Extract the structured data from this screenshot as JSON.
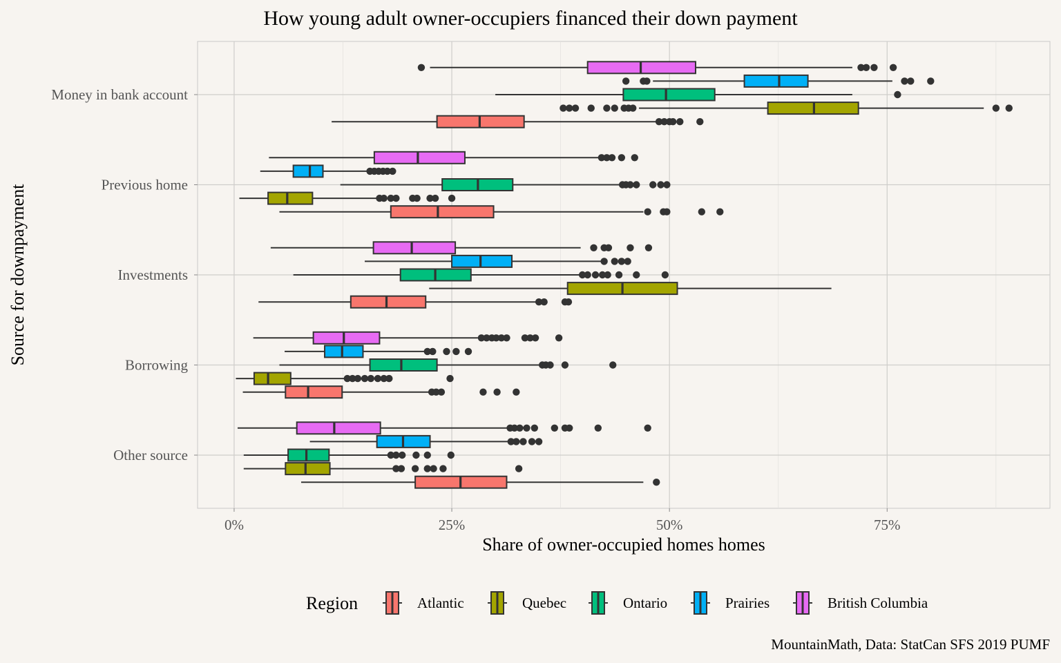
{
  "chart_data": {
    "type": "boxplot",
    "orientation": "horizontal",
    "title": "How young adult owner-occupiers financed their down payment",
    "xlabel": "Share of owner-occupied homes homes",
    "ylabel": "Source for downpayment",
    "caption": "MountainMath, Data: StatCan SFS 2019 PUMF",
    "xlim": [
      -0.042,
      0.937
    ],
    "xticks": [
      {
        "value": 0,
        "label": "0%"
      },
      {
        "value": 0.25,
        "label": "25%"
      },
      {
        "value": 0.5,
        "label": "50%"
      },
      {
        "value": 0.75,
        "label": "75%"
      }
    ],
    "grid": true,
    "legend": {
      "title": "Region",
      "position": "bottom",
      "entries": [
        "Atlantic",
        "Quebec",
        "Ontario",
        "Prairies",
        "British Columbia"
      ]
    },
    "colors": {
      "Atlantic": "#F8766D",
      "Quebec": "#A3A500",
      "Ontario": "#00BF7D",
      "Prairies": "#00B0F6",
      "British Columbia": "#E76BF3"
    },
    "categories": [
      "Money in bank account",
      "Previous home",
      "Investments",
      "Borrowing",
      "Other source"
    ],
    "groups": [
      {
        "category": "Money in bank account",
        "boxes": [
          {
            "region": "British Columbia",
            "whisker_low": 0.225,
            "q1": 0.406,
            "median": 0.467,
            "q3": 0.53,
            "whisker_high": 0.71,
            "outliers": [
              0.215,
              0.72,
              0.726,
              0.735,
              0.757
            ]
          },
          {
            "region": "Prairies",
            "whisker_low": 0.481,
            "q1": 0.586,
            "median": 0.626,
            "q3": 0.659,
            "whisker_high": 0.756,
            "outliers": [
              0.45,
              0.47,
              0.474,
              0.77,
              0.777,
              0.8
            ]
          },
          {
            "region": "Ontario",
            "whisker_low": 0.3,
            "q1": 0.447,
            "median": 0.496,
            "q3": 0.552,
            "whisker_high": 0.71,
            "outliers": [
              0.762
            ]
          },
          {
            "region": "Quebec",
            "whisker_low": 0.465,
            "q1": 0.613,
            "median": 0.666,
            "q3": 0.717,
            "whisker_high": 0.861,
            "outliers": [
              0.378,
              0.385,
              0.392,
              0.41,
              0.428,
              0.437,
              0.448,
              0.453,
              0.458,
              0.875,
              0.89
            ]
          },
          {
            "region": "Atlantic",
            "whisker_low": 0.112,
            "q1": 0.233,
            "median": 0.282,
            "q3": 0.333,
            "whisker_high": 0.486,
            "outliers": [
              0.488,
              0.494,
              0.5,
              0.504,
              0.512,
              0.535
            ]
          }
        ]
      },
      {
        "category": "Previous home",
        "boxes": [
          {
            "region": "British Columbia",
            "whisker_low": 0.04,
            "q1": 0.161,
            "median": 0.211,
            "q3": 0.265,
            "whisker_high": 0.42,
            "outliers": [
              0.422,
              0.428,
              0.434,
              0.445,
              0.46
            ]
          },
          {
            "region": "Prairies",
            "whisker_low": 0.03,
            "q1": 0.068,
            "median": 0.087,
            "q3": 0.102,
            "whisker_high": 0.155,
            "outliers": [
              0.156,
              0.161,
              0.166,
              0.171,
              0.176,
              0.182
            ]
          },
          {
            "region": "Ontario",
            "whisker_low": 0.122,
            "q1": 0.239,
            "median": 0.28,
            "q3": 0.32,
            "whisker_high": 0.445,
            "outliers": [
              0.446,
              0.45,
              0.455,
              0.462,
              0.481,
              0.49,
              0.497
            ]
          },
          {
            "region": "Quebec",
            "whisker_low": 0.006,
            "q1": 0.039,
            "median": 0.061,
            "q3": 0.09,
            "whisker_high": 0.165,
            "outliers": [
              0.167,
              0.172,
              0.18,
              0.186,
              0.205,
              0.21,
              0.225,
              0.231,
              0.25
            ]
          },
          {
            "region": "Atlantic",
            "whisker_low": 0.052,
            "q1": 0.18,
            "median": 0.234,
            "q3": 0.298,
            "whisker_high": 0.47,
            "outliers": [
              0.475,
              0.493,
              0.497,
              0.537,
              0.558
            ]
          }
        ]
      },
      {
        "category": "Investments",
        "boxes": [
          {
            "region": "British Columbia",
            "whisker_low": 0.042,
            "q1": 0.16,
            "median": 0.204,
            "q3": 0.254,
            "whisker_high": 0.398,
            "outliers": [
              0.413,
              0.425,
              0.43,
              0.455,
              0.476
            ]
          },
          {
            "region": "Prairies",
            "whisker_low": 0.15,
            "q1": 0.25,
            "median": 0.283,
            "q3": 0.319,
            "whisker_high": 0.422,
            "outliers": [
              0.425,
              0.437,
              0.445,
              0.452
            ]
          },
          {
            "region": "Ontario",
            "whisker_low": 0.068,
            "q1": 0.191,
            "median": 0.231,
            "q3": 0.272,
            "whisker_high": 0.398,
            "outliers": [
              0.4,
              0.406,
              0.415,
              0.423,
              0.429,
              0.442,
              0.462,
              0.495
            ]
          },
          {
            "region": "Quebec",
            "whisker_low": 0.224,
            "q1": 0.383,
            "median": 0.446,
            "q3": 0.509,
            "whisker_high": 0.686,
            "outliers": []
          },
          {
            "region": "Atlantic",
            "whisker_low": 0.028,
            "q1": 0.134,
            "median": 0.175,
            "q3": 0.22,
            "whisker_high": 0.347,
            "outliers": [
              0.35,
              0.356,
              0.38,
              0.384
            ]
          }
        ]
      },
      {
        "category": "Borrowing",
        "boxes": [
          {
            "region": "British Columbia",
            "whisker_low": 0.022,
            "q1": 0.091,
            "median": 0.126,
            "q3": 0.167,
            "whisker_high": 0.28,
            "outliers": [
              0.284,
              0.29,
              0.296,
              0.301,
              0.307,
              0.313,
              0.334,
              0.34,
              0.346,
              0.373
            ]
          },
          {
            "region": "Prairies",
            "whisker_low": 0.058,
            "q1": 0.104,
            "median": 0.124,
            "q3": 0.148,
            "whisker_high": 0.22,
            "outliers": [
              0.222,
              0.228,
              0.244,
              0.255,
              0.269
            ]
          },
          {
            "region": "Ontario",
            "whisker_low": 0.052,
            "q1": 0.156,
            "median": 0.192,
            "q3": 0.233,
            "whisker_high": 0.35,
            "outliers": [
              0.354,
              0.358,
              0.363,
              0.38,
              0.435
            ]
          },
          {
            "region": "Quebec",
            "whisker_low": 0.002,
            "q1": 0.023,
            "median": 0.039,
            "q3": 0.065,
            "whisker_high": 0.128,
            "outliers": [
              0.13,
              0.136,
              0.142,
              0.15,
              0.157,
              0.165,
              0.172,
              0.178,
              0.248
            ]
          },
          {
            "region": "Atlantic",
            "whisker_low": 0.01,
            "q1": 0.059,
            "median": 0.085,
            "q3": 0.124,
            "whisker_high": 0.226,
            "outliers": [
              0.227,
              0.232,
              0.238,
              0.286,
              0.302,
              0.324
            ]
          }
        ]
      },
      {
        "category": "Other source",
        "boxes": [
          {
            "region": "British Columbia",
            "whisker_low": 0.004,
            "q1": 0.072,
            "median": 0.115,
            "q3": 0.168,
            "whisker_high": 0.315,
            "outliers": [
              0.317,
              0.322,
              0.328,
              0.336,
              0.345,
              0.368,
              0.38,
              0.385,
              0.418,
              0.475
            ]
          },
          {
            "region": "Prairies",
            "whisker_low": 0.087,
            "q1": 0.164,
            "median": 0.194,
            "q3": 0.225,
            "whisker_high": 0.315,
            "outliers": [
              0.318,
              0.324,
              0.332,
              0.342,
              0.35
            ]
          },
          {
            "region": "Ontario",
            "whisker_low": 0.011,
            "q1": 0.062,
            "median": 0.083,
            "q3": 0.109,
            "whisker_high": 0.178,
            "outliers": [
              0.18,
              0.186,
              0.193,
              0.209,
              0.222,
              0.249
            ]
          },
          {
            "region": "Quebec",
            "whisker_low": 0.011,
            "q1": 0.059,
            "median": 0.082,
            "q3": 0.11,
            "whisker_high": 0.184,
            "outliers": [
              0.186,
              0.192,
              0.208,
              0.222,
              0.229,
              0.24,
              0.327
            ]
          },
          {
            "region": "Atlantic",
            "whisker_low": 0.077,
            "q1": 0.208,
            "median": 0.26,
            "q3": 0.313,
            "whisker_high": 0.47,
            "outliers": [
              0.485
            ]
          }
        ]
      }
    ]
  }
}
